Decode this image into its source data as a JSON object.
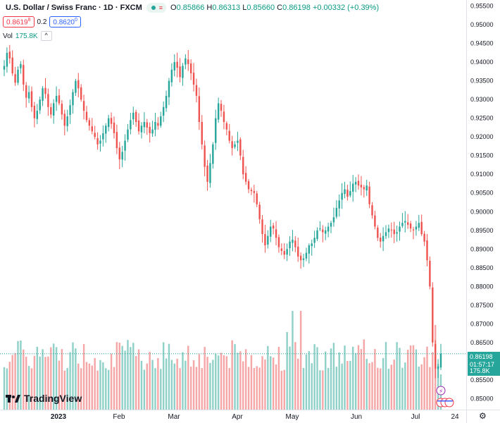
{
  "header": {
    "symbol": "U.S. Dollar / Swiss Franc · 1D · FXCM",
    "open_label": "O",
    "open": "0.85866",
    "high_label": "H",
    "high": "0.86313",
    "low_label": "L",
    "low": "0.85660",
    "close_label": "C",
    "close": "0.86198",
    "change": "+0.00332 (+0.39%)"
  },
  "trade": {
    "sell": "0.8619",
    "sell_sup": "8",
    "spread": "0.2",
    "buy": "0.8620",
    "buy_sup": "0"
  },
  "volume_legend": {
    "label": "Vol",
    "value": "175.8K"
  },
  "price_labels": {
    "last_price": "0.86198",
    "countdown": "01:57:17",
    "last_volume": "175.8K"
  },
  "logo_text": "TradingView",
  "colors": {
    "up": "#26a69a",
    "down": "#ef5350",
    "up_volume": "#8fd1c8",
    "down_volume": "#f5a6a6",
    "axis_text": "#131722"
  },
  "chart_data": {
    "type": "candlestick",
    "title": "U.S. Dollar / Swiss Franc · 1D · FXCM",
    "ylim": [
      0.8495,
      0.9555
    ],
    "y_ticks": [
      "0.95500",
      "0.95000",
      "0.94500",
      "0.94000",
      "0.93500",
      "0.93000",
      "0.92500",
      "0.92000",
      "0.91500",
      "0.91000",
      "0.90500",
      "0.90000",
      "0.89500",
      "0.89000",
      "0.88500",
      "0.88000",
      "0.87500",
      "0.87000",
      "0.86500",
      "0.86000",
      "0.85500",
      "0.85000"
    ],
    "x_ticks": [
      "2023",
      "Feb",
      "Mar",
      "Apr",
      "May",
      "Jun",
      "Jul",
      "24"
    ],
    "close_series": [
      0.939,
      0.9425,
      0.941,
      0.937,
      0.9345,
      0.938,
      0.9395,
      0.934,
      0.9305,
      0.932,
      0.928,
      0.925,
      0.927,
      0.93,
      0.933,
      0.9315,
      0.928,
      0.926,
      0.929,
      0.931,
      0.929,
      0.926,
      0.923,
      0.9255,
      0.9285,
      0.932,
      0.935,
      0.933,
      0.93,
      0.927,
      0.9245,
      0.923,
      0.9215,
      0.92,
      0.918,
      0.919,
      0.921,
      0.923,
      0.925,
      0.9235,
      0.921,
      0.917,
      0.914,
      0.916,
      0.919,
      0.922,
      0.9245,
      0.9265,
      0.924,
      0.9215,
      0.923,
      0.924,
      0.9225,
      0.921,
      0.922,
      0.924,
      0.923,
      0.9255,
      0.928,
      0.931,
      0.935,
      0.938,
      0.94,
      0.9385,
      0.936,
      0.939,
      0.941,
      0.9395,
      0.937,
      0.934,
      0.931,
      0.924,
      0.918,
      0.912,
      0.908,
      0.913,
      0.918,
      0.925,
      0.929,
      0.927,
      0.924,
      0.922,
      0.919,
      0.917,
      0.918,
      0.919,
      0.915,
      0.91,
      0.908,
      0.906,
      0.9055,
      0.905,
      0.902,
      0.898,
      0.894,
      0.891,
      0.8935,
      0.896,
      0.8955,
      0.893,
      0.8905,
      0.8895,
      0.8885,
      0.89,
      0.892,
      0.8925,
      0.8905,
      0.888,
      0.887,
      0.8875,
      0.889,
      0.891,
      0.8915,
      0.893,
      0.895,
      0.8955,
      0.8945,
      0.895,
      0.896,
      0.897,
      0.8985,
      0.901,
      0.903,
      0.905,
      0.906,
      0.904,
      0.9055,
      0.9075,
      0.908,
      0.907,
      0.9065,
      0.906,
      0.907,
      0.902,
      0.899,
      0.896,
      0.893,
      0.892,
      0.8935,
      0.8945,
      0.8955,
      0.895,
      0.894,
      0.8945,
      0.896,
      0.897,
      0.8975,
      0.8965,
      0.8955,
      0.895,
      0.896,
      0.897,
      0.894,
      0.892,
      0.887,
      0.88,
      0.865,
      0.858,
      0.8586,
      0.862
    ],
    "volume_max_k": 340
  }
}
